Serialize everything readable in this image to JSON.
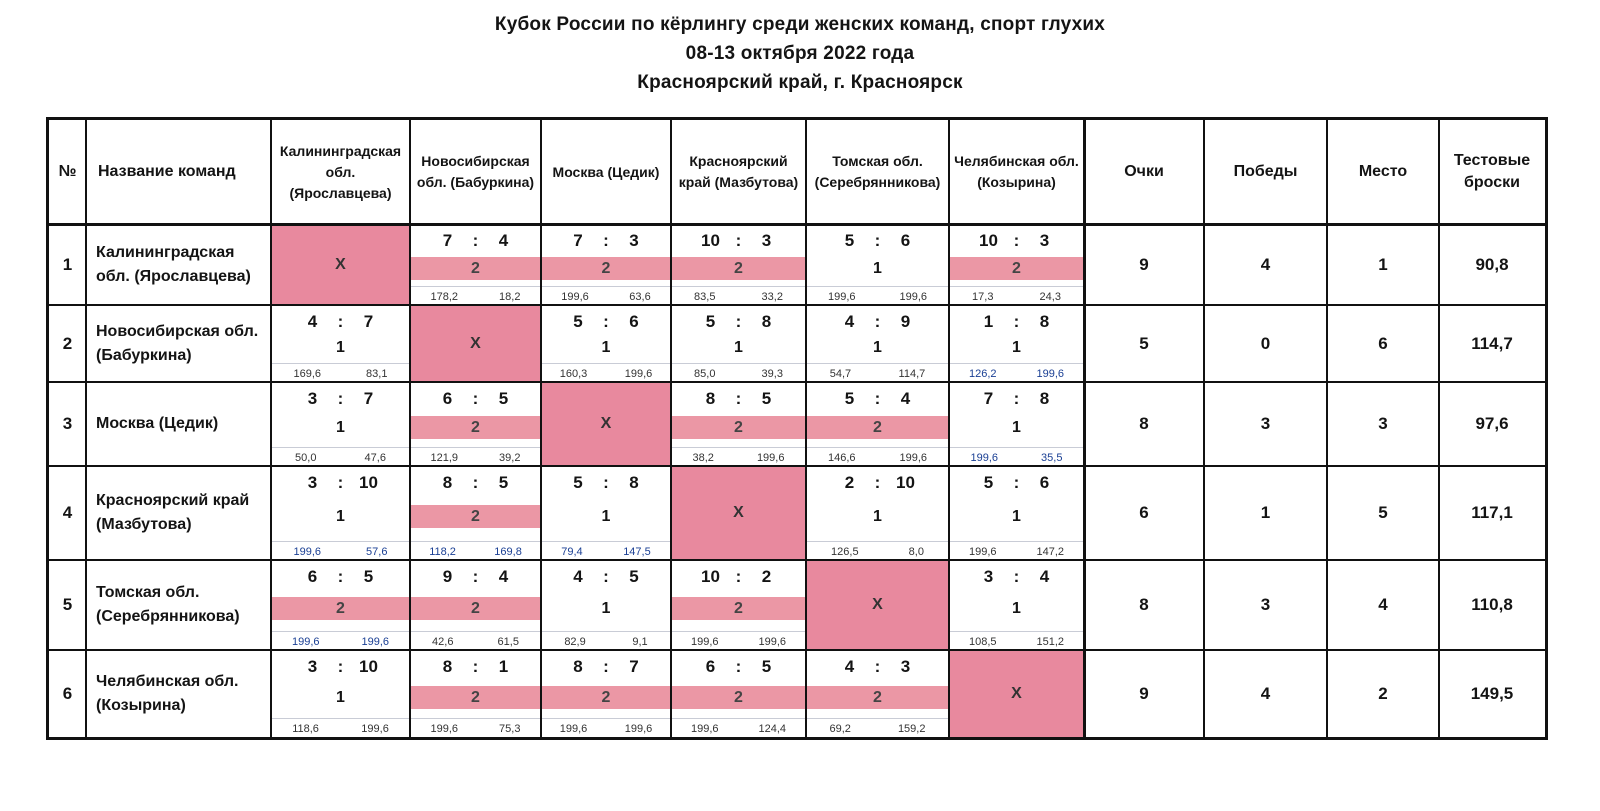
{
  "header": {
    "title": "Кубок России по кёрлингу среди женских команд, спорт глухих",
    "dates": "08-13 октября 2022 года",
    "location": "Красноярский край, г. Красноярск"
  },
  "columns": {
    "num": "№",
    "team": "Название команд",
    "opponents": [
      "Калининградская обл. (Ярославцева)",
      "Новосибирская обл. (Бабуркина)",
      "Москва (Цедик)",
      "Красноярский край (Мазбутова)",
      "Томская обл. (Серебрянникова)",
      "Челябинская обл. (Козырина)"
    ],
    "points": "Очки",
    "wins": "Победы",
    "place": "Место",
    "test_throws": "Тестовые броски"
  },
  "diagonal_mark": "Х",
  "colon": ":",
  "rows": [
    {
      "num": "1",
      "team": "Калининградская обл. (Ярославцева)",
      "cells": [
        null,
        {
          "s1": "7",
          "s2": "4",
          "pts": "2",
          "e1": "178,2",
          "e2": "18,2"
        },
        {
          "s1": "7",
          "s2": "3",
          "pts": "2",
          "e1": "199,6",
          "e2": "63,6"
        },
        {
          "s1": "10",
          "s2": "3",
          "pts": "2",
          "e1": "83,5",
          "e2": "33,2"
        },
        {
          "s1": "5",
          "s2": "6",
          "pts": "1",
          "e1": "199,6",
          "e2": "199,6"
        },
        {
          "s1": "10",
          "s2": "3",
          "pts": "2",
          "e1": "17,3",
          "e2": "24,3"
        }
      ],
      "points": "9",
      "wins": "4",
      "place": "1",
      "test": "90,8"
    },
    {
      "num": "2",
      "team": "Новосибирская обл. (Бабуркина)",
      "cells": [
        {
          "s1": "4",
          "s2": "7",
          "pts": "1",
          "e1": "169,6",
          "e2": "83,1"
        },
        null,
        {
          "s1": "5",
          "s2": "6",
          "pts": "1",
          "e1": "160,3",
          "e2": "199,6"
        },
        {
          "s1": "5",
          "s2": "8",
          "pts": "1",
          "e1": "85,0",
          "e2": "39,3"
        },
        {
          "s1": "4",
          "s2": "9",
          "pts": "1",
          "e1": "54,7",
          "e2": "114,7"
        },
        {
          "s1": "1",
          "s2": "8",
          "pts": "1",
          "e1": "126,2",
          "e2": "199,6"
        }
      ],
      "points": "5",
      "wins": "0",
      "place": "6",
      "test": "114,7"
    },
    {
      "num": "3",
      "team": "Москва (Цедик)",
      "cells": [
        {
          "s1": "3",
          "s2": "7",
          "pts": "1",
          "e1": "50,0",
          "e2": "47,6"
        },
        {
          "s1": "6",
          "s2": "5",
          "pts": "2",
          "e1": "121,9",
          "e2": "39,2"
        },
        null,
        {
          "s1": "8",
          "s2": "5",
          "pts": "2",
          "e1": "38,2",
          "e2": "199,6"
        },
        {
          "s1": "5",
          "s2": "4",
          "pts": "2",
          "e1": "146,6",
          "e2": "199,6"
        },
        {
          "s1": "7",
          "s2": "8",
          "pts": "1",
          "e1": "199,6",
          "e2": "35,5"
        }
      ],
      "points": "8",
      "wins": "3",
      "place": "3",
      "test": "97,6"
    },
    {
      "num": "4",
      "team": "Красноярский край (Мазбутова)",
      "cells": [
        {
          "s1": "3",
          "s2": "10",
          "pts": "1",
          "e1": "199,6",
          "e2": "57,6"
        },
        {
          "s1": "8",
          "s2": "5",
          "pts": "2",
          "e1": "118,2",
          "e2": "169,8"
        },
        {
          "s1": "5",
          "s2": "8",
          "pts": "1",
          "e1": "79,4",
          "e2": "147,5"
        },
        null,
        {
          "s1": "2",
          "s2": "10",
          "pts": "1",
          "e1": "126,5",
          "e2": "8,0"
        },
        {
          "s1": "5",
          "s2": "6",
          "pts": "1",
          "e1": "199,6",
          "e2": "147,2"
        }
      ],
      "points": "6",
      "wins": "1",
      "place": "5",
      "test": "117,1"
    },
    {
      "num": "5",
      "team": "Томская обл. (Серебрянникова)",
      "cells": [
        {
          "s1": "6",
          "s2": "5",
          "pts": "2",
          "e1": "199,6",
          "e2": "199,6"
        },
        {
          "s1": "9",
          "s2": "4",
          "pts": "2",
          "e1": "42,6",
          "e2": "61,5"
        },
        {
          "s1": "4",
          "s2": "5",
          "pts": "1",
          "e1": "82,9",
          "e2": "9,1"
        },
        {
          "s1": "10",
          "s2": "2",
          "pts": "2",
          "e1": "199,6",
          "e2": "199,6"
        },
        null,
        {
          "s1": "3",
          "s2": "4",
          "pts": "1",
          "e1": "108,5",
          "e2": "151,2"
        }
      ],
      "points": "8",
      "wins": "3",
      "place": "4",
      "test": "110,8"
    },
    {
      "num": "6",
      "team": "Челябинская обл. (Козырина)",
      "cells": [
        {
          "s1": "3",
          "s2": "10",
          "pts": "1",
          "e1": "118,6",
          "e2": "199,6"
        },
        {
          "s1": "8",
          "s2": "1",
          "pts": "2",
          "e1": "199,6",
          "e2": "75,3"
        },
        {
          "s1": "8",
          "s2": "7",
          "pts": "2",
          "e1": "199,6",
          "e2": "199,6"
        },
        {
          "s1": "6",
          "s2": "5",
          "pts": "2",
          "e1": "199,6",
          "e2": "124,4"
        },
        {
          "s1": "4",
          "s2": "3",
          "pts": "2",
          "e1": "69,2",
          "e2": "159,2"
        },
        null
      ],
      "points": "9",
      "wins": "4",
      "place": "2",
      "test": "149,5"
    }
  ],
  "colors": {
    "win_highlight": "#eb97a5",
    "diagonal": "#e8899e",
    "grid": "#111111",
    "end_values_blue": "#1a3f94"
  }
}
